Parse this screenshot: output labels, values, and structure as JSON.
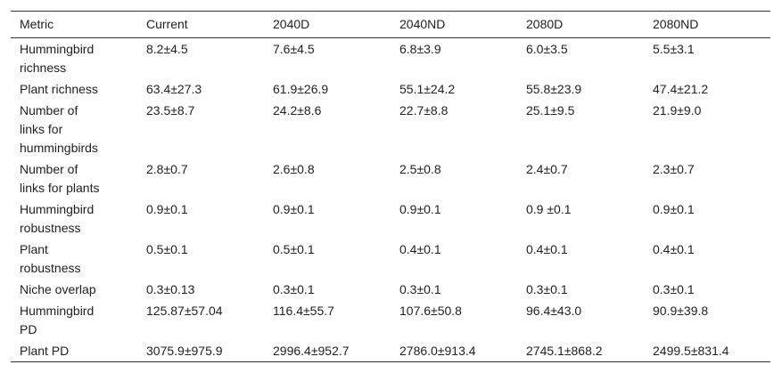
{
  "table": {
    "header": [
      "Metric",
      "Current",
      "2040D",
      "2040ND",
      "2080D",
      "2080ND"
    ],
    "rows": [
      [
        "Hummingbird richness",
        "8.2±4.5",
        "7.6±4.5",
        "6.8±3.9",
        "6.0±3.5",
        "5.5±3.1"
      ],
      [
        "Plant richness",
        "63.4±27.3",
        "61.9±26.9",
        "55.1±24.2",
        "55.8±23.9",
        "47.4±21.2"
      ],
      [
        "Number of links for hummingbirds",
        "23.5±8.7",
        "24.2±8.6",
        "22.7±8.8",
        "25.1±9.5",
        "21.9±9.0"
      ],
      [
        "Number of links for plants",
        "2.8±0.7",
        "2.6±0.8",
        "2.5±0.8",
        "2.4±0.7",
        "2.3±0.7"
      ],
      [
        "Hummingbird robustness",
        "0.9±0.1",
        "0.9±0.1",
        "0.9±0.1",
        "0.9 ±0.1",
        "0.9±0.1"
      ],
      [
        "Plant robustness",
        "0.5±0.1",
        "0.5±0.1",
        "0.4±0.1",
        "0.4±0.1",
        "0.4±0.1"
      ],
      [
        "Niche overlap",
        "0.3±0.13",
        "0.3±0.1",
        "0.3±0.1",
        "0.3±0.1",
        "0.3±0.1"
      ],
      [
        "Hummingbird PD",
        "125.87±57.04",
        "116.4±55.7",
        "107.6±50.8",
        "96.4±43.0",
        "90.9±39.8"
      ],
      [
        "Plant PD",
        "3075.9±975.9",
        "2996.4±952.7",
        "2786.0±913.4",
        "2745.1±868.2",
        "2499.5±831.4"
      ]
    ]
  }
}
